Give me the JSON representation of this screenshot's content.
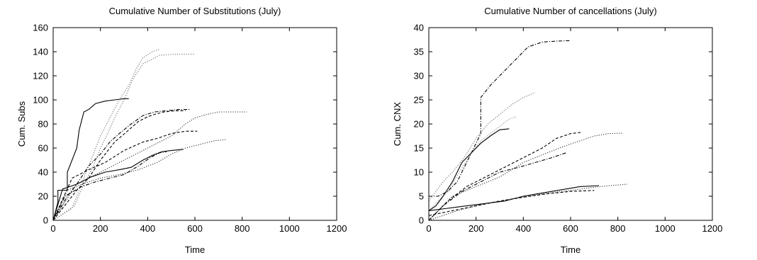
{
  "chart_data": [
    {
      "type": "line",
      "title": "Cumulative Number of Substitutions (July)",
      "xlabel": "Time",
      "ylabel": "Cum. Subs",
      "xlim": [
        0,
        1200
      ],
      "ylim": [
        0,
        160
      ],
      "xticks": [
        0,
        200,
        400,
        600,
        800,
        1000,
        1200
      ],
      "yticks": [
        0,
        20,
        40,
        60,
        80,
        100,
        120,
        140,
        160
      ],
      "grid": false,
      "legend": "none",
      "series": [
        {
          "style": "solid",
          "color": "#000000",
          "x": [
            0,
            20,
            20,
            60,
            60,
            100,
            110,
            130,
            150,
            180,
            220,
            260,
            300,
            320
          ],
          "y": [
            0,
            15,
            25,
            25,
            40,
            60,
            75,
            90,
            92,
            97,
            99,
            100,
            101,
            101
          ]
        },
        {
          "style": "dotted",
          "color": "#707070",
          "x": [
            0,
            80,
            120,
            160,
            200,
            240,
            280,
            320,
            350,
            380,
            420,
            450
          ],
          "y": [
            0,
            10,
            30,
            50,
            70,
            85,
            100,
            112,
            125,
            135,
            140,
            142
          ]
        },
        {
          "style": "dotted",
          "color": "#707070",
          "x": [
            0,
            90,
            130,
            170,
            200,
            230,
            260,
            300,
            340,
            380,
            450,
            520,
            600
          ],
          "y": [
            0,
            12,
            30,
            45,
            60,
            72,
            85,
            100,
            118,
            130,
            137,
            138,
            138
          ]
        },
        {
          "style": "dashdot",
          "color": "#000000",
          "x": [
            0,
            60,
            100,
            150,
            200,
            240,
            280,
            330,
            380,
            430,
            480,
            530,
            580
          ],
          "y": [
            0,
            20,
            30,
            45,
            55,
            65,
            72,
            80,
            87,
            90,
            91,
            92,
            92
          ]
        },
        {
          "style": "dashed",
          "color": "#000000",
          "x": [
            0,
            100,
            150,
            200,
            260,
            320,
            360,
            400,
            430,
            470,
            520,
            560
          ],
          "y": [
            0,
            25,
            35,
            50,
            65,
            75,
            82,
            86,
            88,
            90,
            91,
            91
          ]
        },
        {
          "style": "dotted",
          "color": "#303030",
          "x": [
            0,
            100,
            200,
            300,
            400,
            500,
            560,
            600,
            650,
            700,
            750,
            820
          ],
          "y": [
            0,
            30,
            40,
            50,
            60,
            70,
            80,
            85,
            88,
            90,
            90,
            90
          ]
        },
        {
          "style": "dashed",
          "color": "#000000",
          "x": [
            0,
            80,
            150,
            220,
            300,
            380,
            440,
            500,
            560,
            610
          ],
          "y": [
            0,
            35,
            42,
            48,
            58,
            65,
            68,
            72,
            74,
            74
          ]
        },
        {
          "style": "solid",
          "color": "#000000",
          "x": [
            0,
            40,
            100,
            160,
            220,
            280,
            330,
            380,
            420,
            460,
            500,
            550
          ],
          "y": [
            0,
            26,
            30,
            36,
            40,
            42,
            44,
            50,
            54,
            57,
            58,
            59
          ]
        },
        {
          "style": "dotted",
          "color": "#303030",
          "x": [
            0,
            60,
            120,
            200,
            280,
            360,
            440,
            500,
            560,
            620,
            680,
            730
          ],
          "y": [
            0,
            25,
            30,
            35,
            38,
            42,
            48,
            55,
            60,
            63,
            66,
            67
          ]
        },
        {
          "style": "dashdot",
          "color": "#000000",
          "x": [
            0,
            50,
            120,
            180,
            240,
            300,
            360,
            410,
            450,
            480
          ],
          "y": [
            0,
            20,
            28,
            32,
            35,
            38,
            45,
            52,
            56,
            57
          ]
        }
      ]
    },
    {
      "type": "line",
      "title": "Cumulative Number of cancellations (July)",
      "xlabel": "Time",
      "ylabel": "Cum. CNX",
      "xlim": [
        0,
        1200
      ],
      "ylim": [
        0,
        40
      ],
      "xticks": [
        0,
        200,
        400,
        600,
        800,
        1000,
        1200
      ],
      "yticks": [
        0,
        5,
        10,
        15,
        20,
        25,
        30,
        35,
        40
      ],
      "grid": false,
      "legend": "none",
      "series": [
        {
          "style": "dashdot",
          "color": "#000000",
          "x": [
            0,
            40,
            80,
            120,
            160,
            200,
            220,
            220,
            260,
            300,
            340,
            380,
            420,
            480,
            540,
            600
          ],
          "y": [
            5,
            5,
            6,
            8,
            12,
            16,
            18,
            25.5,
            28,
            30,
            32,
            34,
            36,
            37,
            37.2,
            37.3
          ]
        },
        {
          "style": "dotted",
          "color": "#707070",
          "x": [
            0,
            60,
            100,
            150,
            200,
            250,
            300,
            350,
            400,
            450
          ],
          "y": [
            4,
            8,
            10,
            13,
            17,
            20,
            22,
            24,
            25.5,
            26.5
          ]
        },
        {
          "style": "dotted",
          "color": "#909090",
          "x": [
            0,
            80,
            130,
            180,
            220,
            260,
            300,
            340,
            370
          ],
          "y": [
            2,
            6,
            10,
            14,
            16.5,
            18,
            19.5,
            21,
            21.5
          ]
        },
        {
          "style": "solid",
          "color": "#000000",
          "x": [
            0,
            30,
            60,
            100,
            140,
            180,
            220,
            260,
            300,
            340
          ],
          "y": [
            2,
            3,
            5,
            8,
            12,
            14,
            16,
            17.5,
            18.8,
            19
          ]
        },
        {
          "style": "dashed",
          "color": "#000000",
          "x": [
            0,
            80,
            160,
            240,
            320,
            400,
            480,
            540,
            600,
            650
          ],
          "y": [
            0,
            4,
            7,
            9,
            11,
            13,
            15,
            17,
            18,
            18.3
          ]
        },
        {
          "style": "dotted",
          "color": "#303030",
          "x": [
            0,
            100,
            200,
            300,
            400,
            500,
            580,
            640,
            700,
            760,
            820
          ],
          "y": [
            0,
            5,
            7,
            9,
            12,
            14,
            15.5,
            16.5,
            17.5,
            18,
            18.1
          ]
        },
        {
          "style": "dashdot",
          "color": "#000000",
          "x": [
            0,
            60,
            140,
            220,
            300,
            380,
            450,
            520,
            580
          ],
          "y": [
            0,
            3,
            6,
            8,
            10,
            11,
            12,
            13,
            14
          ]
        },
        {
          "style": "solid",
          "color": "#000000",
          "x": [
            0,
            80,
            160,
            240,
            320,
            400,
            460,
            520,
            580,
            640,
            720
          ],
          "y": [
            2,
            2.5,
            3,
            3.5,
            4,
            5,
            5.5,
            6,
            6.5,
            7,
            7.2
          ]
        },
        {
          "style": "dotted",
          "color": "#303030",
          "x": [
            0,
            120,
            240,
            360,
            480,
            600,
            720,
            840
          ],
          "y": [
            0,
            2,
            3.5,
            4.5,
            5.5,
            6.2,
            7,
            7.5
          ]
        },
        {
          "style": "dashed",
          "color": "#000000",
          "x": [
            0,
            100,
            200,
            300,
            400,
            500,
            600,
            700
          ],
          "y": [
            1,
            2,
            3,
            4,
            4.8,
            5.5,
            6,
            6.2
          ]
        }
      ]
    }
  ]
}
